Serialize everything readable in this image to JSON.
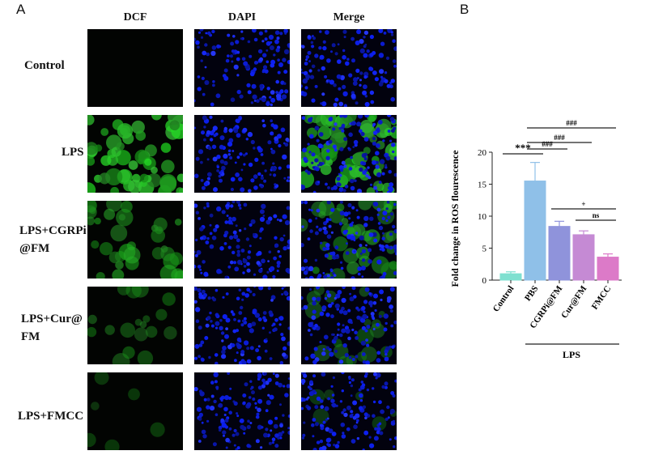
{
  "panel_a": {
    "letter": "A",
    "columns": [
      "DCF",
      "DAPI",
      "Merge"
    ],
    "rows": [
      {
        "label": "Control",
        "dcf_green": 0.02
      },
      {
        "label": "LPS",
        "dcf_green": 0.85
      },
      {
        "label": "LPS+CGRPi @FM",
        "dcf_green": 0.5
      },
      {
        "label": "LPS+Cur@ FM",
        "dcf_green": 0.25
      },
      {
        "label": "LPS+FMCC",
        "dcf_green": 0.08
      }
    ]
  },
  "panel_b": {
    "letter": "B",
    "chart_data": {
      "type": "bar",
      "categories": [
        "Control",
        "PBS",
        "CGRPi@FM",
        "Cur@FM",
        "FMCC"
      ],
      "values": [
        1.0,
        15.5,
        8.4,
        7.1,
        3.6
      ],
      "errors": [
        0.3,
        2.9,
        0.8,
        0.6,
        0.5
      ],
      "colors": [
        "#7fe0d0",
        "#8fc0e8",
        "#8f93db",
        "#c58ad4",
        "#dc7ac8"
      ],
      "ylabel": "Fold change in ROS flourescence",
      "ylim": [
        0,
        20
      ],
      "yticks": [
        0,
        5,
        10,
        15,
        20
      ],
      "group_label": "LPS",
      "group_span": [
        1,
        4
      ],
      "annotations": [
        {
          "from": 0,
          "to": 1,
          "text": "***"
        },
        {
          "from": 1,
          "to": 2,
          "text": "###"
        },
        {
          "from": 1,
          "to": 3,
          "text": "###"
        },
        {
          "from": 1,
          "to": 4,
          "text": "###"
        },
        {
          "from": 2,
          "to": 4,
          "text": "+"
        },
        {
          "from": 3,
          "to": 4,
          "text": "ns"
        }
      ]
    }
  }
}
